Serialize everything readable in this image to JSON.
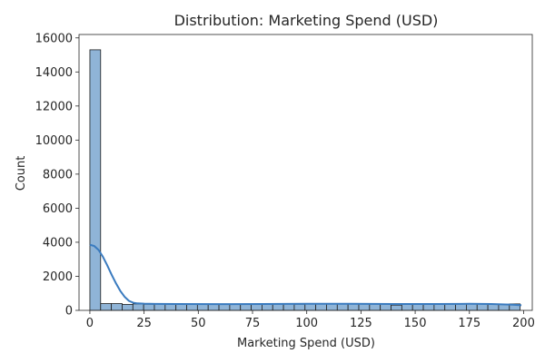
{
  "chart_data": {
    "type": "bar",
    "title": "Distribution: Marketing Spend (USD)",
    "xlabel": "Marketing Spend (USD)",
    "ylabel": "Count",
    "xlim": [
      -5,
      204
    ],
    "ylim": [
      0,
      16200
    ],
    "xticks": [
      0,
      25,
      50,
      75,
      100,
      125,
      150,
      175,
      200
    ],
    "yticks": [
      0,
      2000,
      4000,
      6000,
      8000,
      10000,
      12000,
      14000,
      16000
    ],
    "grid": false,
    "bin_start": 0,
    "bin_width": 4.96,
    "values": [
      15300,
      400,
      400,
      350,
      380,
      360,
      370,
      360,
      350,
      370,
      360,
      360,
      370,
      360,
      370,
      370,
      380,
      370,
      370,
      360,
      380,
      370,
      370,
      380,
      380,
      370,
      380,
      390,
      310,
      370,
      360,
      370,
      360,
      380,
      380,
      390,
      380,
      360,
      360,
      380
    ],
    "kde": {
      "x": [
        0,
        2,
        4,
        6,
        8,
        10,
        12,
        14,
        16,
        18,
        20,
        22,
        25,
        30,
        40,
        60,
        80,
        100,
        120,
        140,
        160,
        175,
        185,
        195,
        199
      ],
      "y": [
        3850,
        3780,
        3550,
        3150,
        2650,
        2100,
        1600,
        1150,
        800,
        560,
        450,
        410,
        390,
        380,
        370,
        365,
        375,
        385,
        385,
        375,
        370,
        385,
        375,
        330,
        300
      ]
    },
    "colors": {
      "bar_fill": "#8fb4d7",
      "bar_edge": "#1f1f1f",
      "kde": "#3a7bbf"
    }
  }
}
